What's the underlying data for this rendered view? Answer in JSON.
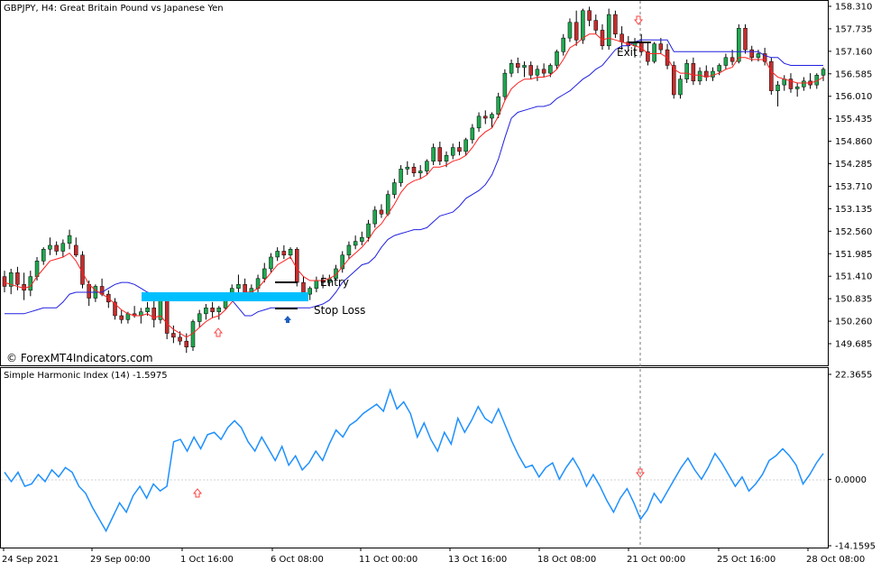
{
  "chart_data": [
    {
      "type": "candlestick",
      "symbol": "GBPJPY",
      "timeframe": "H4",
      "description": "Great Britain Pound vs Japanese Yen",
      "watermark": "© ForexMT4Indicators.com",
      "ylim": [
        149.35,
        158.45
      ],
      "y_ticks": [
        "158.310",
        "157.735",
        "157.160",
        "156.585",
        "156.010",
        "155.435",
        "154.860",
        "154.285",
        "153.710",
        "153.135",
        "152.560",
        "151.985",
        "151.410",
        "150.835",
        "150.260",
        "149.685"
      ],
      "x_ticks": [
        "24 Sep 2021",
        "29 Sep 00:00",
        "1 Oct 16:00",
        "6 Oct 08:00",
        "11 Oct 00:00",
        "13 Oct 16:00",
        "18 Oct 08:00",
        "21 Oct 00:00",
        "25 Oct 16:00",
        "28 Oct 08:00"
      ],
      "candles": [
        [
          151.4,
          151.55,
          151.0,
          151.15
        ],
        [
          151.15,
          151.6,
          150.95,
          151.5
        ],
        [
          151.5,
          151.65,
          151.05,
          151.2
        ],
        [
          151.2,
          151.5,
          150.8,
          151.05
        ],
        [
          151.05,
          151.55,
          150.9,
          151.4
        ],
        [
          151.4,
          151.9,
          151.3,
          151.8
        ],
        [
          151.8,
          152.15,
          151.7,
          152.1
        ],
        [
          152.1,
          152.4,
          151.95,
          152.2
        ],
        [
          152.2,
          152.3,
          151.95,
          152.05
        ],
        [
          152.05,
          152.35,
          151.9,
          152.25
        ],
        [
          152.25,
          152.6,
          152.1,
          152.45
        ],
        [
          152.2,
          152.4,
          151.9,
          151.95
        ],
        [
          151.95,
          152.05,
          151.1,
          151.2
        ],
        [
          151.2,
          151.3,
          150.65,
          150.85
        ],
        [
          150.85,
          151.2,
          150.75,
          151.15
        ],
        [
          151.15,
          151.35,
          150.9,
          150.95
        ],
        [
          150.95,
          151.05,
          150.6,
          150.75
        ],
        [
          150.75,
          150.85,
          150.3,
          150.4
        ],
        [
          150.4,
          150.55,
          150.2,
          150.3
        ],
        [
          150.3,
          150.5,
          150.2,
          150.45
        ],
        [
          150.45,
          150.65,
          150.35,
          150.4
        ],
        [
          150.4,
          150.6,
          150.2,
          150.5
        ],
        [
          150.5,
          150.75,
          150.4,
          150.6
        ],
        [
          150.6,
          150.8,
          150.1,
          150.3
        ],
        [
          150.3,
          150.95,
          150.2,
          150.85
        ],
        [
          150.85,
          151.0,
          149.8,
          149.95
        ],
        [
          149.95,
          150.15,
          149.7,
          149.85
        ],
        [
          149.85,
          150.0,
          149.65,
          149.75
        ],
        [
          149.75,
          149.95,
          149.45,
          149.6
        ],
        [
          149.6,
          150.3,
          149.5,
          150.25
        ],
        [
          150.25,
          150.55,
          150.1,
          150.45
        ],
        [
          150.45,
          150.7,
          150.3,
          150.6
        ],
        [
          150.6,
          150.75,
          150.35,
          150.5
        ],
        [
          150.5,
          150.65,
          150.3,
          150.6
        ],
        [
          150.6,
          151.0,
          150.55,
          150.95
        ],
        [
          150.95,
          151.2,
          150.8,
          151.1
        ],
        [
          151.1,
          151.45,
          150.95,
          151.2
        ],
        [
          151.2,
          151.35,
          150.85,
          150.95
        ],
        [
          150.95,
          151.2,
          150.8,
          151.1
        ],
        [
          151.1,
          151.45,
          151.0,
          151.35
        ],
        [
          151.35,
          151.75,
          151.25,
          151.6
        ],
        [
          151.6,
          152.0,
          151.5,
          151.9
        ],
        [
          151.9,
          152.15,
          151.8,
          152.05
        ],
        [
          152.05,
          152.2,
          151.85,
          151.95
        ],
        [
          151.95,
          152.15,
          151.85,
          152.1
        ],
        [
          152.1,
          152.15,
          151.15,
          151.25
        ],
        [
          151.25,
          151.4,
          150.85,
          150.95
        ],
        [
          150.95,
          151.15,
          150.8,
          151.1
        ],
        [
          151.1,
          151.4,
          151.0,
          151.3
        ],
        [
          151.3,
          151.45,
          151.1,
          151.25
        ],
        [
          151.25,
          151.45,
          151.15,
          151.35
        ],
        [
          151.35,
          151.7,
          151.3,
          151.6
        ],
        [
          151.6,
          152.05,
          151.5,
          151.95
        ],
        [
          151.95,
          152.3,
          151.85,
          152.2
        ],
        [
          152.2,
          152.45,
          152.1,
          152.3
        ],
        [
          152.3,
          152.55,
          152.2,
          152.4
        ],
        [
          152.4,
          152.85,
          152.3,
          152.75
        ],
        [
          152.75,
          153.2,
          152.65,
          153.1
        ],
        [
          153.1,
          153.25,
          152.9,
          153.0
        ],
        [
          153.0,
          153.6,
          152.95,
          153.5
        ],
        [
          153.5,
          153.9,
          153.4,
          153.8
        ],
        [
          153.8,
          154.25,
          153.7,
          154.15
        ],
        [
          154.15,
          154.35,
          154.0,
          154.2
        ],
        [
          154.2,
          154.3,
          153.95,
          154.05
        ],
        [
          154.05,
          154.25,
          153.9,
          154.1
        ],
        [
          154.1,
          154.4,
          154.0,
          154.35
        ],
        [
          154.35,
          154.8,
          154.25,
          154.7
        ],
        [
          154.7,
          154.85,
          154.25,
          154.35
        ],
        [
          154.35,
          154.6,
          154.2,
          154.5
        ],
        [
          154.5,
          154.8,
          154.4,
          154.7
        ],
        [
          154.7,
          154.85,
          154.5,
          154.6
        ],
        [
          154.6,
          154.95,
          154.5,
          154.9
        ],
        [
          154.9,
          155.3,
          154.8,
          155.2
        ],
        [
          155.2,
          155.6,
          155.1,
          155.5
        ],
        [
          155.5,
          155.65,
          155.3,
          155.45
        ],
        [
          155.45,
          155.6,
          155.2,
          155.55
        ],
        [
          155.55,
          156.1,
          155.45,
          156.0
        ],
        [
          156.0,
          156.7,
          155.9,
          156.6
        ],
        [
          156.6,
          156.95,
          156.5,
          156.85
        ],
        [
          156.85,
          157.0,
          156.6,
          156.75
        ],
        [
          156.75,
          156.9,
          156.5,
          156.8
        ],
        [
          156.8,
          156.9,
          156.45,
          156.55
        ],
        [
          156.55,
          156.8,
          156.4,
          156.7
        ],
        [
          156.7,
          156.85,
          156.5,
          156.6
        ],
        [
          156.6,
          156.85,
          156.5,
          156.8
        ],
        [
          156.8,
          157.2,
          156.7,
          157.15
        ],
        [
          157.15,
          157.6,
          157.05,
          157.5
        ],
        [
          157.5,
          158.0,
          157.4,
          157.9
        ],
        [
          157.9,
          158.2,
          157.3,
          157.45
        ],
        [
          157.45,
          158.25,
          157.35,
          158.2
        ],
        [
          158.2,
          158.3,
          157.8,
          157.95
        ],
        [
          157.95,
          158.1,
          157.6,
          157.7
        ],
        [
          157.7,
          157.85,
          157.2,
          157.3
        ],
        [
          157.3,
          158.25,
          157.2,
          158.1
        ],
        [
          158.1,
          158.2,
          157.5,
          157.6
        ],
        [
          157.6,
          157.8,
          157.2,
          157.4
        ],
        [
          157.4,
          157.55,
          157.15,
          157.3
        ],
        [
          157.3,
          157.5,
          157.0,
          157.4
        ],
        [
          157.4,
          157.6,
          157.05,
          157.15
        ],
        [
          157.15,
          157.4,
          156.8,
          156.9
        ],
        [
          156.9,
          157.4,
          156.85,
          157.35
        ],
        [
          157.35,
          157.5,
          157.1,
          157.2
        ],
        [
          157.2,
          157.35,
          156.7,
          156.8
        ],
        [
          156.8,
          156.9,
          155.95,
          156.05
        ],
        [
          156.05,
          156.55,
          155.95,
          156.45
        ],
        [
          156.45,
          156.95,
          156.35,
          156.85
        ],
        [
          156.85,
          157.0,
          156.3,
          156.4
        ],
        [
          156.4,
          156.75,
          156.3,
          156.65
        ],
        [
          156.65,
          156.8,
          156.4,
          156.5
        ],
        [
          156.5,
          156.75,
          156.4,
          156.65
        ],
        [
          156.65,
          156.85,
          156.55,
          156.8
        ],
        [
          156.8,
          157.1,
          156.7,
          157.0
        ],
        [
          157.0,
          157.2,
          156.8,
          156.9
        ],
        [
          156.9,
          157.85,
          156.85,
          157.75
        ],
        [
          157.75,
          157.85,
          157.1,
          157.2
        ],
        [
          157.2,
          157.3,
          156.9,
          157.0
        ],
        [
          157.0,
          157.2,
          156.9,
          157.1
        ],
        [
          157.1,
          157.25,
          156.8,
          156.9
        ],
        [
          156.9,
          157.0,
          156.05,
          156.15
        ],
        [
          156.15,
          156.4,
          155.75,
          156.3
        ],
        [
          156.3,
          156.55,
          156.15,
          156.45
        ],
        [
          156.45,
          156.6,
          156.1,
          156.2
        ],
        [
          156.2,
          156.35,
          156.0,
          156.25
        ],
        [
          156.25,
          156.5,
          156.15,
          156.4
        ],
        [
          156.4,
          156.6,
          156.2,
          156.3
        ],
        [
          156.3,
          156.6,
          156.2,
          156.55
        ],
        [
          156.55,
          156.75,
          156.4,
          156.7
        ]
      ],
      "red_line": [
        151.25,
        151.2,
        151.15,
        151.1,
        151.15,
        151.4,
        151.6,
        151.8,
        151.85,
        151.9,
        152.0,
        151.8,
        151.5,
        151.2,
        151.05,
        150.95,
        150.85,
        150.7,
        150.55,
        150.45,
        150.4,
        150.4,
        150.45,
        150.35,
        150.4,
        150.2,
        150.05,
        149.95,
        149.85,
        149.95,
        150.1,
        150.25,
        150.35,
        150.4,
        150.55,
        150.75,
        150.95,
        151.0,
        151.0,
        151.1,
        151.3,
        151.5,
        151.7,
        151.8,
        151.9,
        151.6,
        151.4,
        151.3,
        151.3,
        151.3,
        151.35,
        151.45,
        151.65,
        151.85,
        152.0,
        152.15,
        152.35,
        152.6,
        152.75,
        153.0,
        153.25,
        153.55,
        153.75,
        153.85,
        153.9,
        154.0,
        154.2,
        154.2,
        154.25,
        154.35,
        154.4,
        154.5,
        154.7,
        154.95,
        155.1,
        155.2,
        155.5,
        155.9,
        156.2,
        156.35,
        156.45,
        156.45,
        156.5,
        156.5,
        156.55,
        156.7,
        156.95,
        157.25,
        157.35,
        157.5,
        157.6,
        157.6,
        157.45,
        157.5,
        157.45,
        157.4,
        157.35,
        157.3,
        157.25,
        157.1,
        157.1,
        157.1,
        157.0,
        156.7,
        156.6,
        156.6,
        156.55,
        156.55,
        156.5,
        156.55,
        156.6,
        156.7,
        156.75,
        157.0,
        157.0,
        156.95,
        156.95,
        156.95,
        156.65,
        156.5,
        156.45,
        156.4,
        156.35,
        156.35,
        156.35,
        156.4,
        156.5
      ],
      "blue_line": [
        150.45,
        150.45,
        150.45,
        150.45,
        150.5,
        150.55,
        150.6,
        150.6,
        150.6,
        150.75,
        150.95,
        151.0,
        151.0,
        151.0,
        151.0,
        151.0,
        151.1,
        151.2,
        151.25,
        151.25,
        151.2,
        151.1,
        151.0,
        150.95,
        150.95,
        150.9,
        150.9,
        150.9,
        150.9,
        150.85,
        150.8,
        150.8,
        150.8,
        150.8,
        150.8,
        150.8,
        150.6,
        150.4,
        150.4,
        150.5,
        150.55,
        150.6,
        150.6,
        150.6,
        150.6,
        150.6,
        150.6,
        150.6,
        150.65,
        150.7,
        150.8,
        151.0,
        151.25,
        151.4,
        151.55,
        151.7,
        151.75,
        151.9,
        152.15,
        152.35,
        152.45,
        152.5,
        152.55,
        152.6,
        152.6,
        152.65,
        152.8,
        152.95,
        153.0,
        153.05,
        153.2,
        153.4,
        153.5,
        153.6,
        153.75,
        154.0,
        154.4,
        154.95,
        155.45,
        155.6,
        155.65,
        155.7,
        155.75,
        155.75,
        155.8,
        155.95,
        156.05,
        156.15,
        156.3,
        156.45,
        156.55,
        156.7,
        156.8,
        157.0,
        157.2,
        157.3,
        157.3,
        157.4,
        157.45,
        157.45,
        157.45,
        157.45,
        157.45,
        157.15,
        157.15,
        157.15,
        157.15,
        157.15,
        157.15,
        157.15,
        157.15,
        157.15,
        157.15,
        157.15,
        157.15,
        157.15,
        157.15,
        157.05,
        157.0,
        157.0,
        156.85,
        156.8,
        156.8,
        156.8,
        156.8,
        156.8,
        156.8
      ],
      "annotations": {
        "entry": "Entry",
        "stop_loss": "Stop Loss",
        "exit": "Exit"
      },
      "colors": {
        "bull": "#1fa84f",
        "bear": "#c42d2d",
        "red_line": "#ff2020",
        "blue_line": "#2020e0",
        "zone": "#00bfff"
      }
    },
    {
      "type": "line",
      "title": "Simple Harmonic Index (14) -1.5975",
      "ylim": [
        -14.1595,
        22.3655
      ],
      "y_ticks": [
        "22.3655",
        "0.0000",
        "-14.1595"
      ],
      "series": [
        {
          "values": [
            1.5,
            -0.5,
            1.5,
            -1.5,
            -1.0,
            1.0,
            -0.5,
            2.0,
            0.5,
            2.5,
            1.5,
            -1.5,
            -3.0,
            -6.0,
            -8.5,
            -11.0,
            -8.0,
            -5.0,
            -7.0,
            -3.5,
            -1.5,
            -4.0,
            -1.0,
            -2.5,
            -1.5,
            8.0,
            8.5,
            6.0,
            9.0,
            6.5,
            9.5,
            10.0,
            8.5,
            11.0,
            12.5,
            11.0,
            8.0,
            6.0,
            9.0,
            6.5,
            4.0,
            7.0,
            3.0,
            5.0,
            2.0,
            3.5,
            6.0,
            4.0,
            7.5,
            10.5,
            9.0,
            11.5,
            12.5,
            14.0,
            15.0,
            16.0,
            14.5,
            19.0,
            15.0,
            16.5,
            14.0,
            9.0,
            12.0,
            8.5,
            6.0,
            10.0,
            7.5,
            13.0,
            10.0,
            12.5,
            15.5,
            13.0,
            12.0,
            15.0,
            11.5,
            8.0,
            5.0,
            2.5,
            3.0,
            0.5,
            2.5,
            3.5,
            0.0,
            2.5,
            4.5,
            2.0,
            -1.5,
            1.0,
            -1.5,
            -4.5,
            -7.0,
            -4.0,
            -2.0,
            -5.0,
            -8.5,
            -6.5,
            -3.0,
            -5.0,
            -2.5,
            0.0,
            2.5,
            4.5,
            2.0,
            0.0,
            2.5,
            5.5,
            3.5,
            1.0,
            -1.5,
            0.5,
            -2.5,
            -1.0,
            1.0,
            4.0,
            5.0,
            6.5,
            5.0,
            3.0,
            -1.0,
            1.0,
            3.5,
            5.5
          ]
        }
      ],
      "colors": {
        "line": "#1e90ff"
      }
    }
  ]
}
